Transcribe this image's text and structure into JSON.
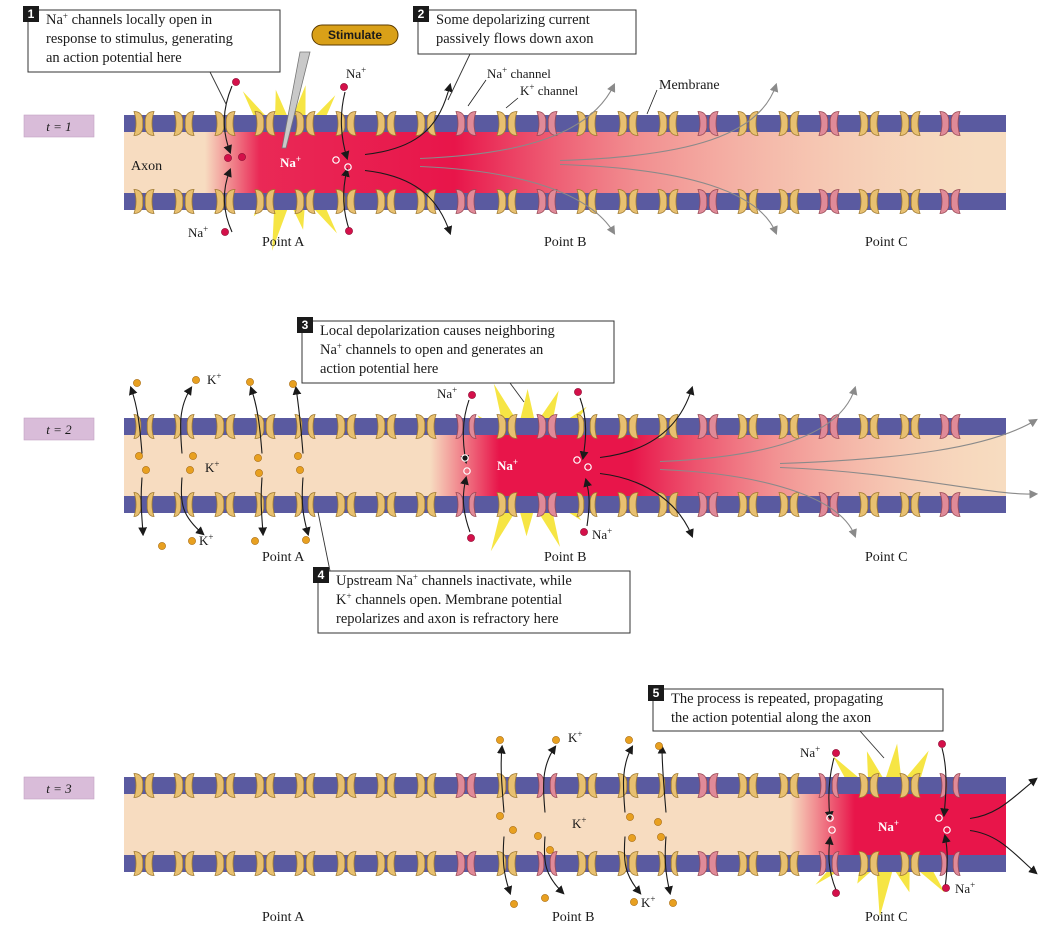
{
  "panels": [
    {
      "time_label": "t = 1",
      "axon_label": "Axon",
      "points": [
        "Point A",
        "Point B",
        "Point C"
      ],
      "stimulate": "Stimulate",
      "na_ion_top": "Na+",
      "na_ion_bottom": "Na+",
      "na_center": "Na+",
      "label_na_channel": "Na+ channel",
      "label_k_channel": "K+ channel",
      "label_membrane": "Membrane",
      "callouts": [
        {
          "number": "1",
          "lines": [
            "Na+ channels locally open in",
            "response to stimulus, generating",
            "an action potential here"
          ]
        },
        {
          "number": "2",
          "lines": [
            "Some depolarizing current",
            "passively flows down axon"
          ]
        }
      ]
    },
    {
      "time_label": "t = 2",
      "points": [
        "Point A",
        "Point B",
        "Point C"
      ],
      "k_top": "K+",
      "k_middle": "K+",
      "k_bottom": "K+",
      "na_top": "Na+",
      "na_bottom": "Na+",
      "na_center": "Na+",
      "callouts": [
        {
          "number": "3",
          "lines": [
            "Local depolarization causes neighboring",
            "Na+ channels to open and generates an",
            "action potential here"
          ]
        },
        {
          "number": "4",
          "lines": [
            "Upstream Na+ channels inactivate, while",
            "K+ channels open. Membrane potential",
            "repolarizes and axon is refractory here"
          ]
        }
      ]
    },
    {
      "time_label": "t = 3",
      "points": [
        "Point A",
        "Point B",
        "Point C"
      ],
      "k_top": "K+",
      "k_middle": "K+",
      "k_bottom": "K+",
      "na_top": "Na+",
      "na_bottom": "Na+",
      "na_center": "Na+",
      "callouts": [
        {
          "number": "5",
          "lines": [
            "The process is repeated, propagating",
            "the action potential along the axon"
          ]
        }
      ]
    }
  ],
  "colors": {
    "membrane": "#5a5aa0",
    "axon": "#f7dcc0",
    "depolarized": "#e8154a",
    "na_channel": "#e08a98",
    "k_channel": "#e8c070",
    "stimulus": "#f6e43a",
    "na_ion": "#d4104a",
    "k_ion": "#e8a020",
    "time_box": "#d9bcd9",
    "stimulate_fill": "#d9a018"
  }
}
